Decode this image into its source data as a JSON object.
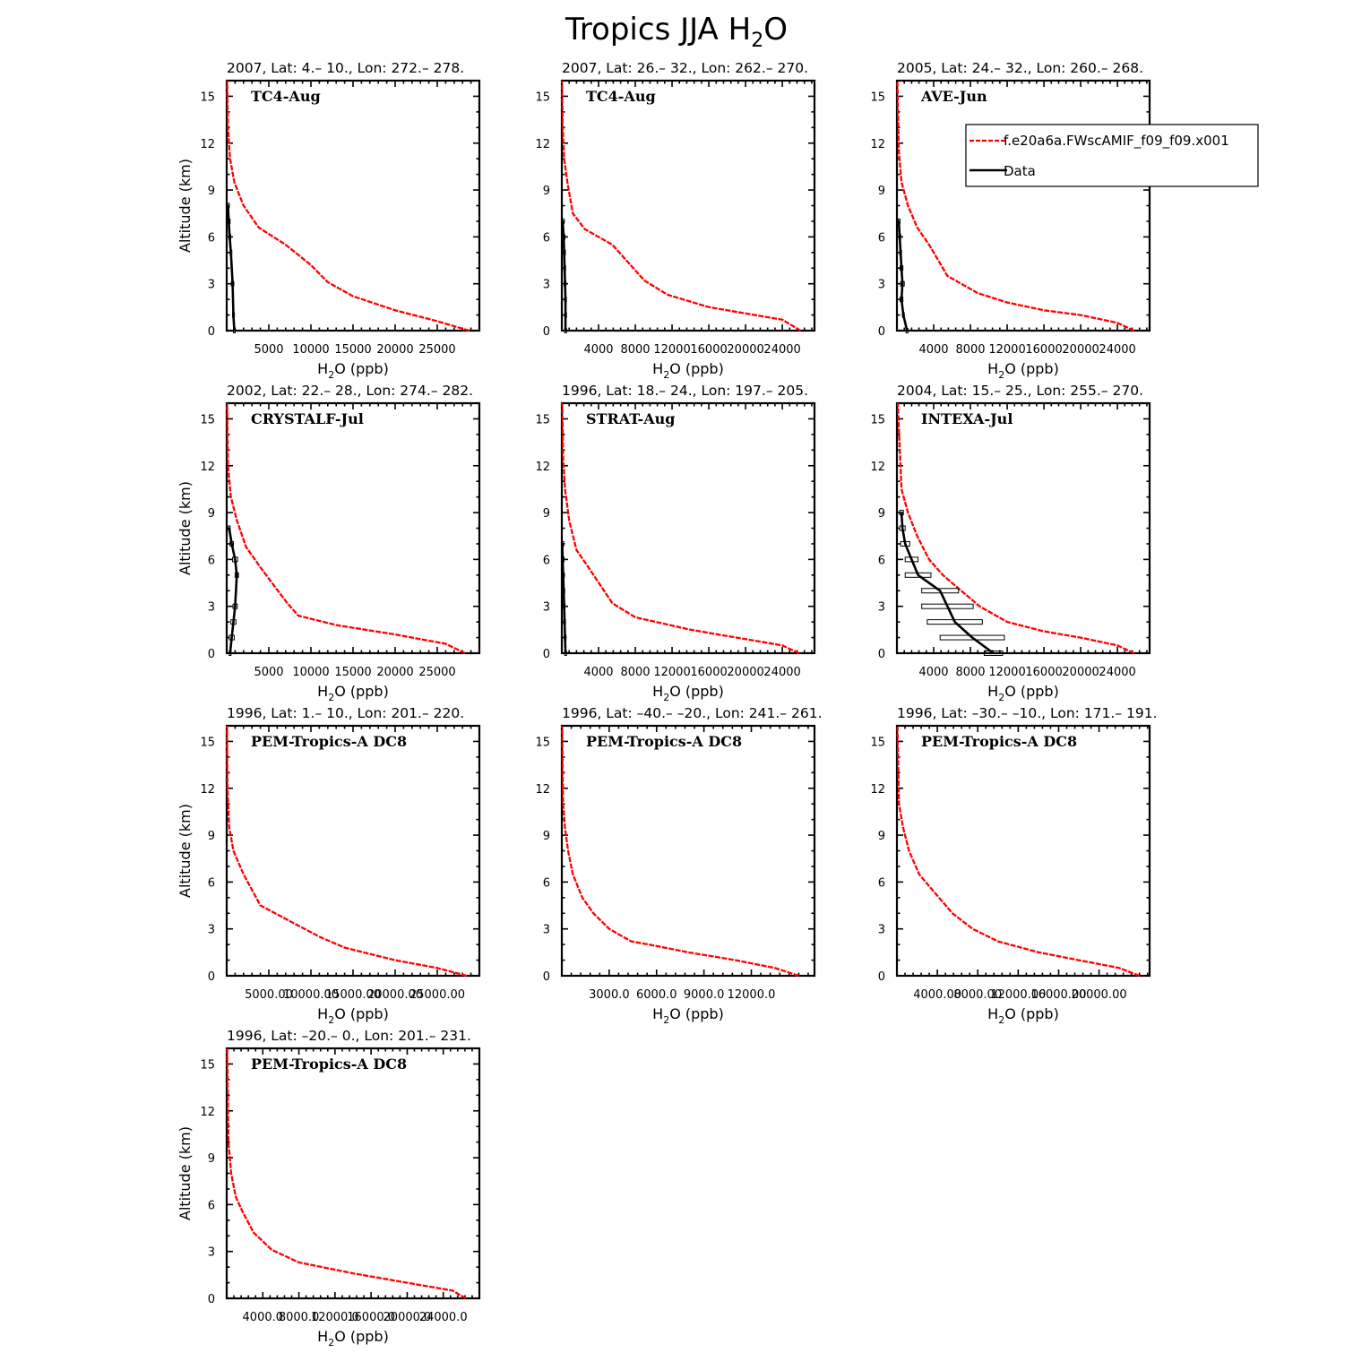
{
  "figure_title": "Tropics JJA H2O",
  "legend": {
    "model": "f.e20a6a.FWscAMIF_f09_f09.x001",
    "obs": "Data"
  },
  "colors": {
    "model": "#ff0000",
    "obs": "#000000"
  },
  "chart_data": [
    {
      "type": "line",
      "header": "2007, Lat: 4.– 10., Lon: 272.– 278.",
      "campaign": "TC4-Aug",
      "xlabel": "H2O (ppb)",
      "ylabel": "Altitude (km)",
      "xlim": [
        0,
        30000
      ],
      "ylim": [
        0,
        16
      ],
      "xticks": [
        5000,
        10000,
        15000,
        20000,
        25000
      ],
      "xtick_labels": [
        "5000",
        "10000",
        "15000",
        "20000",
        "25000"
      ],
      "yticks": [
        0,
        3,
        6,
        9,
        12,
        15
      ],
      "series": [
        {
          "kind": "model",
          "x": [
            28800,
            25000,
            20000,
            15000,
            12000,
            10000,
            7000,
            3800,
            2000,
            900,
            400,
            150,
            50
          ],
          "y": [
            0,
            0.6,
            1.3,
            2.2,
            3.1,
            4.2,
            5.5,
            6.6,
            8.0,
            9.5,
            11.0,
            13.0,
            16.0
          ]
        },
        {
          "kind": "obs",
          "x": [
            900,
            800,
            700,
            500,
            350,
            250,
            150
          ],
          "y": [
            0,
            1,
            3,
            5,
            6,
            7,
            8
          ],
          "err": [
            100,
            100,
            150,
            100,
            80,
            60,
            50
          ]
        }
      ]
    },
    {
      "type": "line",
      "header": "2007, Lat: 26.– 32., Lon: 262.– 270.",
      "campaign": "TC4-Aug",
      "xlabel": "H2O (ppb)",
      "ylabel": "Altitude (km)",
      "xlim": [
        0,
        27500
      ],
      "ylim": [
        0,
        16
      ],
      "xticks": [
        4000,
        8000,
        12000,
        16000,
        20000,
        24000
      ],
      "xtick_labels": [
        "4000",
        "8000",
        "12000",
        "16000",
        "20000",
        "24000"
      ],
      "yticks": [
        0,
        3,
        6,
        9,
        12,
        15
      ],
      "series": [
        {
          "kind": "model",
          "x": [
            26000,
            24000,
            20000,
            16000,
            11500,
            9000,
            5500,
            2500,
            1200,
            600,
            250,
            100,
            30
          ],
          "y": [
            0,
            0.7,
            1.1,
            1.5,
            2.3,
            3.2,
            5.5,
            6.5,
            7.5,
            9.5,
            11.0,
            13.0,
            16.0
          ]
        },
        {
          "kind": "obs",
          "x": [
            400,
            400,
            400,
            350,
            300,
            250,
            200,
            100
          ],
          "y": [
            0,
            1,
            2,
            3,
            4,
            5,
            6,
            7
          ],
          "err": [
            80,
            80,
            100,
            100,
            80,
            60,
            50,
            40
          ]
        }
      ]
    },
    {
      "type": "line",
      "header": "2005, Lat: 24.– 32., Lon: 260.– 268.",
      "campaign": "AVE-Jun",
      "xlabel": "H2O (ppb)",
      "ylabel": "Altitude (km)",
      "xlim": [
        0,
        27500
      ],
      "ylim": [
        0,
        16
      ],
      "xticks": [
        4000,
        8000,
        12000,
        16000,
        20000,
        24000
      ],
      "xtick_labels": [
        "4000",
        "8000",
        "12000",
        "16000",
        "20000",
        "24000"
      ],
      "yticks": [
        0,
        3,
        6,
        9,
        12,
        15
      ],
      "series": [
        {
          "kind": "model",
          "x": [
            25800,
            24000,
            20000,
            16000,
            12000,
            8800,
            5500,
            3500,
            2200,
            1200,
            500,
            200,
            50
          ],
          "y": [
            0,
            0.5,
            1.0,
            1.3,
            1.8,
            2.4,
            3.5,
            5.5,
            6.6,
            8.0,
            9.5,
            11.5,
            16.0
          ]
        },
        {
          "kind": "obs",
          "x": [
            1100,
            700,
            500,
            600,
            500,
            400,
            300,
            200
          ],
          "y": [
            0,
            1,
            2,
            3,
            4,
            5,
            6,
            7
          ],
          "err": [
            100,
            100,
            150,
            200,
            150,
            100,
            80,
            60
          ]
        }
      ]
    },
    {
      "type": "line",
      "header": "2002, Lat: 22.– 28., Lon: 274.– 282.",
      "campaign": "CRYSTALF-Jul",
      "xlabel": "H2O (ppb)",
      "ylabel": "Altitude (km)",
      "xlim": [
        0,
        30000
      ],
      "ylim": [
        0,
        16
      ],
      "xticks": [
        5000,
        10000,
        15000,
        20000,
        25000
      ],
      "xtick_labels": [
        "5000",
        "10000",
        "15000",
        "20000",
        "25000"
      ],
      "yticks": [
        0,
        3,
        6,
        9,
        12,
        15
      ],
      "series": [
        {
          "kind": "model",
          "x": [
            28300,
            26000,
            20000,
            13000,
            8500,
            7200,
            5800,
            4000,
            2300,
            1200,
            500,
            150,
            50
          ],
          "y": [
            0,
            0.6,
            1.2,
            1.8,
            2.4,
            3.2,
            4.2,
            5.5,
            6.8,
            8.5,
            10.0,
            12.0,
            16.0
          ]
        },
        {
          "kind": "obs",
          "x": [
            400,
            600,
            800,
            1000,
            1200,
            1000,
            600,
            300
          ],
          "y": [
            0,
            1,
            2,
            3,
            5,
            6,
            7,
            8
          ],
          "err": [
            100,
            300,
            300,
            250,
            200,
            300,
            200,
            100
          ]
        }
      ]
    },
    {
      "type": "line",
      "header": "1996, Lat: 18.– 24., Lon: 197.– 205.",
      "campaign": "STRAT-Aug",
      "xlabel": "H2O (ppb)",
      "ylabel": "Altitude (km)",
      "xlim": [
        0,
        27500
      ],
      "ylim": [
        0,
        16
      ],
      "xticks": [
        4000,
        8000,
        12000,
        16000,
        20000,
        24000
      ],
      "xtick_labels": [
        "4000",
        "8000",
        "12000",
        "16000",
        "20000",
        "24000"
      ],
      "yticks": [
        0,
        3,
        6,
        9,
        12,
        15
      ],
      "series": [
        {
          "kind": "model",
          "x": [
            25800,
            24000,
            20000,
            14000,
            8000,
            5500,
            3000,
            1600,
            800,
            350,
            150,
            50
          ],
          "y": [
            0,
            0.5,
            0.9,
            1.5,
            2.3,
            3.2,
            5.4,
            6.6,
            8.5,
            10.5,
            12.5,
            16.0
          ]
        },
        {
          "kind": "obs",
          "x": [
            400,
            350,
            300,
            250,
            200,
            150,
            100,
            50
          ],
          "y": [
            0,
            1,
            2,
            3,
            4,
            5,
            6,
            7
          ],
          "err": [
            80,
            80,
            100,
            100,
            80,
            60,
            50,
            40
          ]
        }
      ]
    },
    {
      "type": "line",
      "header": "2004, Lat: 15.– 25., Lon: 255.– 270.",
      "campaign": "INTEXA-Jul",
      "xlabel": "H2O (ppb)",
      "ylabel": "Altitude (km)",
      "xlim": [
        0,
        27500
      ],
      "ylim": [
        0,
        16
      ],
      "xticks": [
        4000,
        8000,
        12000,
        16000,
        20000,
        24000
      ],
      "xtick_labels": [
        "4000",
        "8000",
        "12000",
        "16000",
        "20000",
        "24000"
      ],
      "yticks": [
        0,
        3,
        6,
        9,
        12,
        15
      ],
      "series": [
        {
          "kind": "model",
          "x": [
            25800,
            24000,
            20000,
            16000,
            12000,
            9000,
            7000,
            5000,
            3500,
            2200,
            1200,
            500,
            100
          ],
          "y": [
            0,
            0.5,
            1.0,
            1.4,
            2.0,
            3.0,
            4.0,
            5.0,
            6.0,
            7.5,
            9.0,
            10.5,
            16.0
          ]
        },
        {
          "kind": "obs",
          "x": [
            10500,
            8200,
            6300,
            5500,
            4700,
            2300,
            1600,
            900,
            600,
            500
          ],
          "y": [
            0,
            1,
            2,
            3,
            4,
            5,
            6,
            7,
            8,
            9
          ],
          "err": [
            1000,
            3500,
            3000,
            2800,
            2000,
            1400,
            700,
            500,
            300,
            200
          ]
        }
      ]
    },
    {
      "type": "line",
      "header": "1996, Lat: 1.– 10., Lon: 201.– 220.",
      "campaign": "PEM-Tropics-A DC8",
      "xlabel": "H2O (ppb)",
      "ylabel": "Altitude (km)",
      "xlim": [
        0,
        30000
      ],
      "ylim": [
        0,
        16
      ],
      "xticks": [
        5000,
        10000,
        15000,
        20000,
        25000
      ],
      "xtick_labels": [
        "5000.00",
        "10000.00",
        "15000.00",
        "20000.00",
        "25000.00"
      ],
      "yticks": [
        0,
        3,
        6,
        9,
        12,
        15
      ],
      "series": [
        {
          "kind": "model",
          "x": [
            28500,
            25000,
            20000,
            14000,
            11000,
            7500,
            4000,
            2000,
            800,
            300,
            100,
            30
          ],
          "y": [
            0,
            0.5,
            1.0,
            1.8,
            2.5,
            3.5,
            4.5,
            6.5,
            8.0,
            9.5,
            12.0,
            16.0
          ]
        }
      ]
    },
    {
      "type": "line",
      "header": "1996, Lat: –40.– –20., Lon: 241.– 261.",
      "campaign": "PEM-Tropics-A DC8",
      "xlabel": "H2O (ppb)",
      "ylabel": "Altitude (km)",
      "xlim": [
        0,
        16000
      ],
      "ylim": [
        0,
        16
      ],
      "xticks": [
        3000,
        6000,
        9000,
        12000
      ],
      "xtick_labels": [
        "3000.0",
        "6000.0",
        "9000.0",
        "12000.0"
      ],
      "yticks": [
        0,
        3,
        6,
        9,
        12,
        15
      ],
      "series": [
        {
          "kind": "model",
          "x": [
            15000,
            13500,
            11000,
            8000,
            5500,
            4400,
            3000,
            2000,
            1300,
            700,
            400,
            200,
            80,
            20
          ],
          "y": [
            0,
            0.5,
            1.0,
            1.5,
            2.0,
            2.2,
            3.0,
            4.0,
            5.0,
            6.5,
            8.0,
            9.5,
            11.0,
            16.0
          ]
        }
      ]
    },
    {
      "type": "line",
      "header": "1996, Lat: –30.– –10., Lon: 171.– 191.",
      "campaign": "PEM-Tropics-A DC8",
      "xlabel": "H2O (ppb)",
      "ylabel": "Altitude (km)",
      "xlim": [
        0,
        25000
      ],
      "ylim": [
        0,
        16
      ],
      "xticks": [
        4000,
        8000,
        12000,
        16000,
        20000
      ],
      "xtick_labels": [
        "4000.00",
        "8000.00",
        "12000.00",
        "16000.00",
        "20000.00"
      ],
      "yticks": [
        0,
        3,
        6,
        9,
        12,
        15
      ],
      "series": [
        {
          "kind": "model",
          "x": [
            24000,
            22000,
            18000,
            14000,
            10000,
            7500,
            5500,
            3500,
            2200,
            1200,
            600,
            200,
            50
          ],
          "y": [
            0,
            0.5,
            1.0,
            1.5,
            2.2,
            3.0,
            4.0,
            5.5,
            6.5,
            8.0,
            9.5,
            11.0,
            16.0
          ]
        }
      ]
    },
    {
      "type": "line",
      "header": "1996, Lat: –20.– 0., Lon: 201.– 231.",
      "campaign": "PEM-Tropics-A DC8",
      "xlabel": "H2O (ppb)",
      "ylabel": "Altitude (km)",
      "xlim": [
        0,
        28000
      ],
      "ylim": [
        0,
        16
      ],
      "xticks": [
        4000,
        8000,
        12000,
        16000,
        20000,
        24000
      ],
      "xtick_labels": [
        "4000.0",
        "8000.0",
        "12000.0",
        "16000.0",
        "20000.0",
        "24000.0"
      ],
      "yticks": [
        0,
        3,
        6,
        9,
        12,
        15
      ],
      "series": [
        {
          "kind": "model",
          "x": [
            26500,
            25000,
            20000,
            14000,
            8000,
            5000,
            3000,
            1800,
            1000,
            500,
            200,
            50
          ],
          "y": [
            0,
            0.5,
            1.0,
            1.6,
            2.3,
            3.1,
            4.2,
            5.5,
            6.5,
            8.0,
            10.0,
            16.0
          ]
        }
      ]
    }
  ]
}
